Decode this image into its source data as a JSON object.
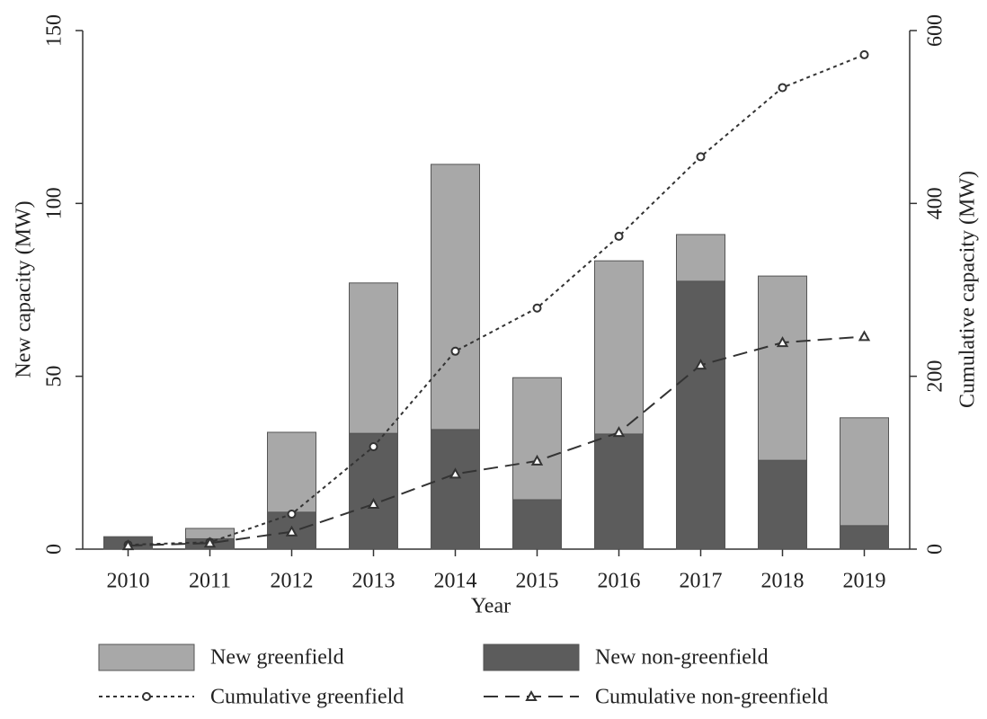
{
  "chart_data": {
    "type": "bar",
    "stacked": true,
    "x_label": "Year",
    "y_label": "New capacity (MW)",
    "y2_label": "Cumulative capacity (MW)",
    "categories": [
      "2010",
      "2011",
      "2012",
      "2013",
      "2014",
      "2015",
      "2016",
      "2017",
      "2018",
      "2019"
    ],
    "series": [
      {
        "name": "New greenfield",
        "type": "bar",
        "color": "#a8a8a8",
        "values": [
          0,
          3,
          23.1,
          43.5,
          76.7,
          35.3,
          50.1,
          13.5,
          53.3,
          31.2
        ]
      },
      {
        "name": "New non-greenfield",
        "type": "bar",
        "color": "#5c5c5c",
        "values": [
          3.6,
          3,
          10.7,
          33.5,
          34.6,
          14.3,
          33.3,
          77.5,
          25.7,
          6.8
        ]
      },
      {
        "name": "Cumulative greenfield",
        "type": "line",
        "axis": "y2",
        "color": "#333333",
        "dash": "dotted",
        "marker": "circle",
        "values": [
          5,
          8,
          40.5,
          118.5,
          229,
          279,
          362,
          454,
          534,
          572
        ]
      },
      {
        "name": "Cumulative non-greenfield",
        "type": "line",
        "axis": "y2",
        "color": "#333333",
        "dash": "dashed",
        "marker": "triangle",
        "values": [
          4,
          7,
          20,
          52,
          87,
          102,
          135,
          213,
          239,
          246
        ]
      }
    ],
    "ylim": [
      0,
      150
    ],
    "yticks": [
      0,
      50,
      100,
      150
    ],
    "y2lim": [
      0,
      600
    ],
    "y2ticks": [
      0,
      200,
      400,
      600
    ],
    "legend": "bottom"
  }
}
